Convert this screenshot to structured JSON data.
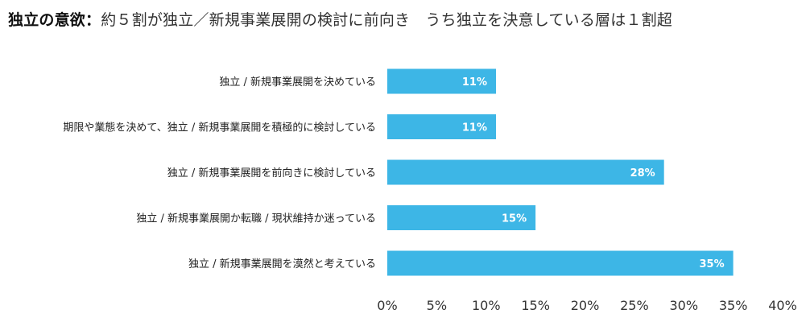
{
  "header": {
    "title_lead": "独立の意欲",
    "title_separator": "：",
    "title_rest": "約５割が独立／新規事業展開の検討に前向き　うち独立を決意している層は１割超"
  },
  "chart_data": {
    "type": "bar",
    "orientation": "horizontal",
    "categories": [
      "独立 / 新規事業展開を決めている",
      "期限や業態を決めて、独立 / 新規事業展開を積極的に検討している",
      "独立 / 新規事業展開を前向きに検討している",
      "独立 / 新規事業展開か転職 / 現状維持か迷っている",
      "独立 / 新規事業展開を漠然と考えている"
    ],
    "values": [
      11,
      11,
      28,
      15,
      35
    ],
    "value_labels": [
      "11%",
      "11%",
      "28%",
      "15%",
      "35%"
    ],
    "value_unit": "%",
    "xlim": [
      0,
      40
    ],
    "x_ticks": [
      0,
      5,
      10,
      15,
      20,
      25,
      30,
      35,
      40
    ],
    "x_tick_labels": [
      "0%",
      "5%",
      "10%",
      "15%",
      "20%",
      "25%",
      "30%",
      "35%",
      "40%"
    ],
    "xlabel": "",
    "ylabel": "",
    "grid": false,
    "legend": "none",
    "bar_color": "#3DB6E6",
    "value_label_color": "#FFFFFF"
  }
}
